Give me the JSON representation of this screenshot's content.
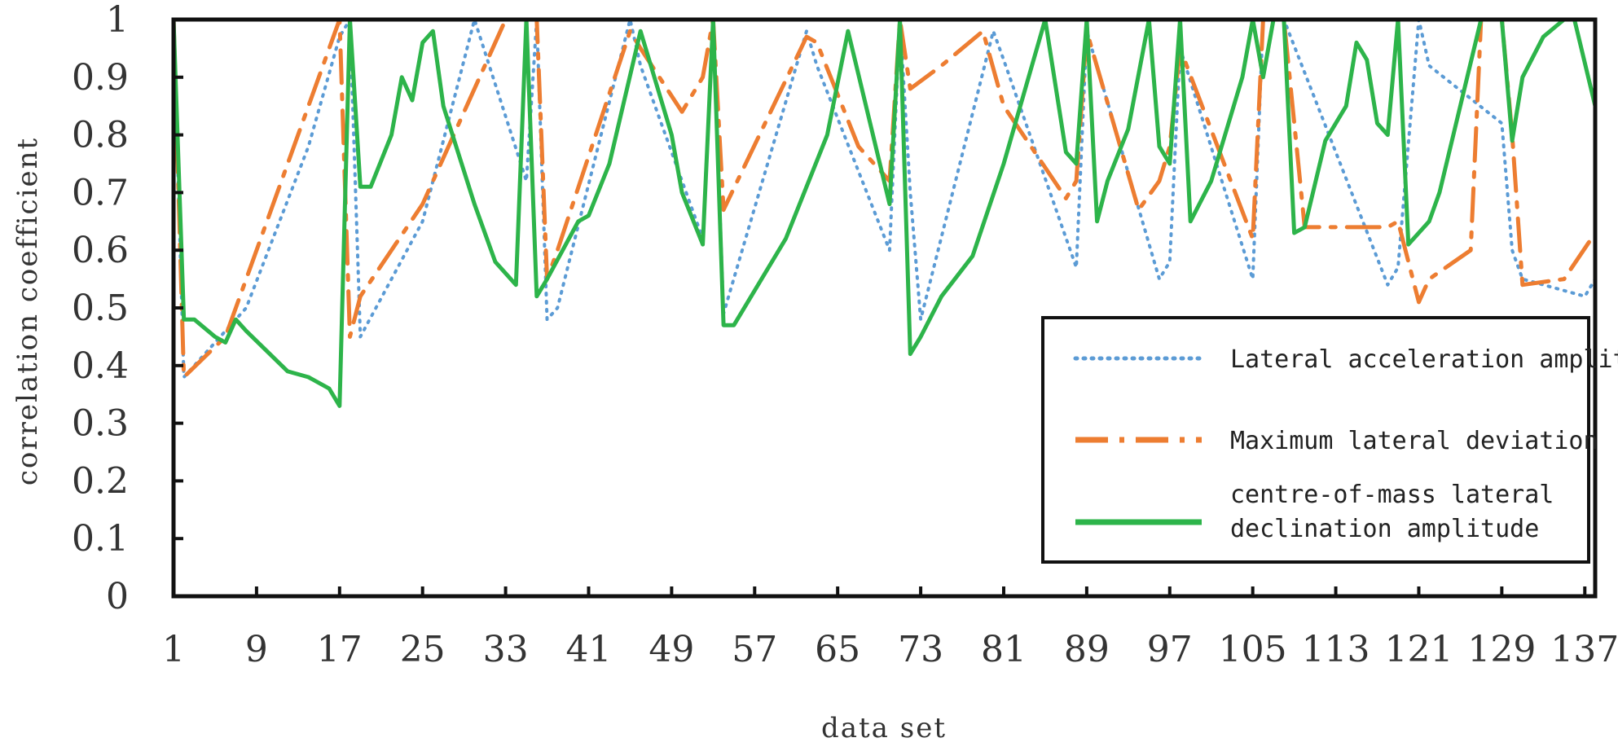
{
  "chart_data": {
    "type": "line",
    "title": "",
    "xlabel": "data set",
    "ylabel": "correlation coefficient",
    "xlim": [
      1,
      138
    ],
    "ylim": [
      0,
      1
    ],
    "x_ticks": [
      1,
      9,
      17,
      25,
      33,
      41,
      49,
      57,
      65,
      73,
      81,
      89,
      97,
      105,
      113,
      121,
      129,
      137
    ],
    "x_tick_labels": [
      "1",
      "9",
      "17",
      "25",
      "33",
      "41",
      "49",
      "57",
      "65",
      "73",
      "81",
      "89",
      "97",
      "105",
      "113",
      "121",
      "129",
      "137"
    ],
    "y_ticks": [
      0,
      0.1,
      0.2,
      0.3,
      0.4,
      0.5,
      0.6,
      0.7,
      0.8,
      0.9,
      1
    ],
    "y_tick_labels": [
      "0",
      "0.1",
      "0.2",
      "0.3",
      "0.4",
      "0.5",
      "0.6",
      "0.7",
      "0.8",
      "0.9",
      "1"
    ],
    "grid": false,
    "legend_position": "bottom-right",
    "series": [
      {
        "name": "Lateral acceleration amplitude",
        "color": "#5b9bd5",
        "style": "dotted",
        "x": [
          1,
          2,
          8,
          14,
          17,
          18,
          19,
          25,
          30,
          35,
          36,
          37,
          38,
          45,
          46,
          52,
          53,
          54,
          62,
          63,
          70,
          71,
          72,
          73,
          80,
          81,
          88,
          89,
          96,
          97,
          98,
          105,
          106,
          107,
          108,
          118,
          119,
          121,
          122,
          129,
          130,
          131,
          137,
          138
        ],
        "y": [
          1,
          0.38,
          0.5,
          0.78,
          0.97,
          1,
          0.45,
          0.65,
          1,
          0.72,
          1,
          0.48,
          0.5,
          1,
          0.92,
          0.62,
          1,
          0.49,
          0.98,
          0.92,
          0.6,
          1,
          0.7,
          0.48,
          0.98,
          0.93,
          0.57,
          0.98,
          0.55,
          0.58,
          0.95,
          0.55,
          1,
          1,
          1,
          0.54,
          0.57,
          1,
          0.92,
          0.82,
          0.6,
          0.55,
          0.52,
          0.55
        ]
      },
      {
        "name": "Maximum lateral deviation",
        "color": "#ed7d31",
        "style": "dash-dot",
        "x": [
          1,
          2,
          6,
          17,
          18,
          19,
          25,
          33,
          35,
          36,
          37,
          38,
          45,
          46,
          50,
          52,
          53,
          54,
          62,
          63,
          67,
          70,
          71,
          72,
          75,
          79,
          81,
          87,
          88,
          89,
          94,
          96,
          97,
          98,
          105,
          106,
          107,
          108,
          110,
          118,
          119,
          121,
          122,
          126,
          127,
          129,
          130,
          131,
          135,
          138
        ],
        "y": [
          1,
          0.38,
          0.45,
          1,
          0.45,
          0.52,
          0.68,
          1,
          1,
          1,
          0.55,
          0.6,
          0.98,
          0.95,
          0.84,
          0.9,
          1,
          0.67,
          0.97,
          0.96,
          0.78,
          0.72,
          1,
          0.88,
          0.92,
          0.98,
          0.85,
          0.69,
          0.72,
          0.98,
          0.67,
          0.72,
          0.78,
          0.95,
          0.62,
          1,
          1,
          1,
          0.64,
          0.64,
          0.65,
          0.51,
          0.55,
          0.6,
          1,
          1,
          0.8,
          0.54,
          0.55,
          0.63
        ]
      },
      {
        "name": "centre-of-mass lateral declination amplitude",
        "color": "#2db44a",
        "style": "solid",
        "x": [
          1,
          2,
          3,
          5,
          6,
          7,
          8,
          12,
          14,
          16,
          17,
          18,
          19,
          20,
          22,
          23,
          24,
          25,
          26,
          27,
          30,
          32,
          34,
          35,
          36,
          37,
          40,
          41,
          43,
          46,
          49,
          50,
          52,
          53,
          54,
          55,
          60,
          64,
          66,
          70,
          71,
          72,
          73,
          75,
          78,
          81,
          85,
          87,
          88,
          89,
          90,
          91,
          93,
          95,
          96,
          97,
          98,
          99,
          101,
          104,
          105,
          106,
          107,
          108,
          109,
          110,
          112,
          114,
          115,
          116,
          117,
          118,
          119,
          120,
          122,
          123,
          125,
          127,
          129,
          130,
          131,
          133,
          135,
          136,
          138
        ],
        "y": [
          1,
          0.48,
          0.48,
          0.45,
          0.44,
          0.48,
          0.46,
          0.39,
          0.38,
          0.36,
          0.33,
          1,
          0.71,
          0.71,
          0.8,
          0.9,
          0.86,
          0.96,
          0.98,
          0.85,
          0.68,
          0.58,
          0.54,
          1,
          0.52,
          0.55,
          0.65,
          0.66,
          0.75,
          0.98,
          0.8,
          0.7,
          0.61,
          1,
          0.47,
          0.47,
          0.62,
          0.8,
          0.98,
          0.68,
          1,
          0.42,
          0.45,
          0.52,
          0.59,
          0.75,
          1,
          0.77,
          0.75,
          1,
          0.65,
          0.72,
          0.81,
          1,
          0.78,
          0.75,
          1,
          0.65,
          0.72,
          0.9,
          1,
          0.9,
          1,
          1,
          0.63,
          0.64,
          0.79,
          0.85,
          0.96,
          0.93,
          0.82,
          0.8,
          1,
          0.61,
          0.65,
          0.7,
          0.85,
          1,
          1,
          0.79,
          0.9,
          0.97,
          1,
          1,
          0.85
        ]
      }
    ]
  }
}
